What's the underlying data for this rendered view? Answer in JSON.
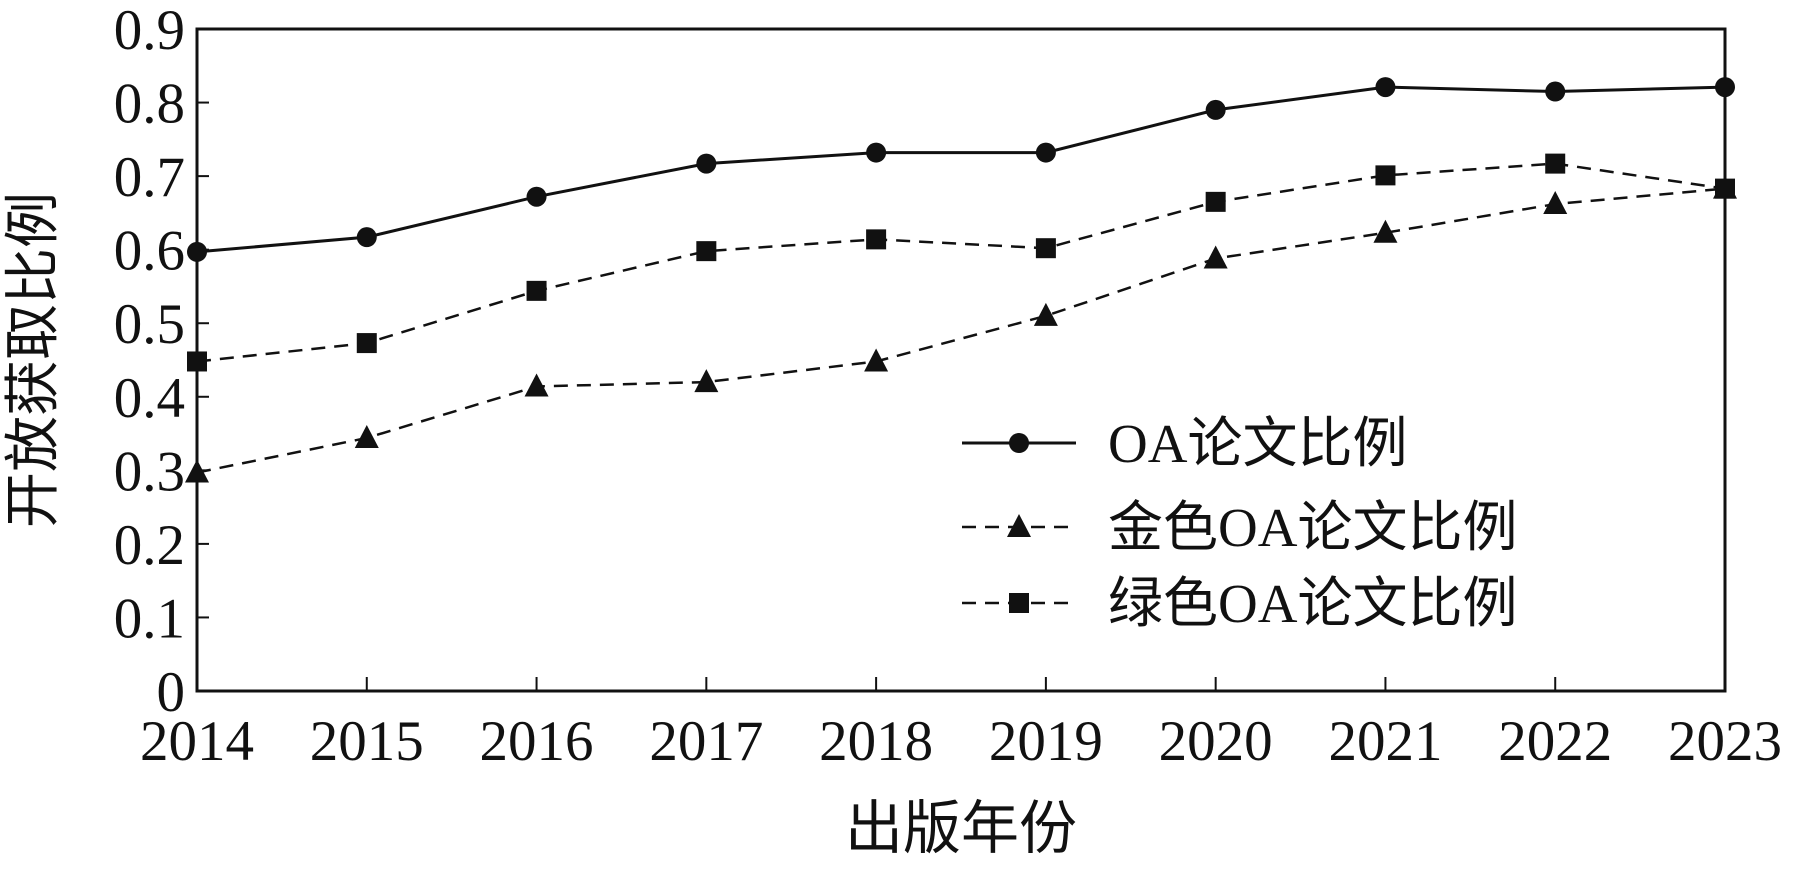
{
  "chart_data": {
    "type": "line",
    "title": "",
    "xlabel": "出版年份",
    "ylabel": "开放获取比例",
    "x": [
      "2014",
      "2015",
      "2016",
      "2017",
      "2018",
      "2019",
      "2020",
      "2021",
      "2022",
      "2023"
    ],
    "ylim": [
      0,
      0.9
    ],
    "yticks": [
      "0",
      "0.1",
      "0.2",
      "0.3",
      "0.4",
      "0.5",
      "0.6",
      "0.7",
      "0.8",
      "0.9"
    ],
    "grid": false,
    "legend_position": "bottom-right",
    "series": [
      {
        "name": "OA论文比例",
        "marker": "circle",
        "dash": "solid",
        "values": [
          0.597,
          0.617,
          0.672,
          0.717,
          0.732,
          0.732,
          0.79,
          0.821,
          0.815,
          0.821
        ]
      },
      {
        "name": "金色OA论文比例",
        "marker": "triangle",
        "dash": "dashed",
        "values": [
          0.297,
          0.344,
          0.414,
          0.42,
          0.448,
          0.51,
          0.588,
          0.623,
          0.662,
          0.683
        ]
      },
      {
        "name": "绿色OA论文比例",
        "marker": "square",
        "dash": "dashed",
        "values": [
          0.448,
          0.473,
          0.544,
          0.598,
          0.614,
          0.602,
          0.665,
          0.701,
          0.717,
          0.683
        ]
      }
    ],
    "colors": {
      "line": "#111111"
    }
  }
}
